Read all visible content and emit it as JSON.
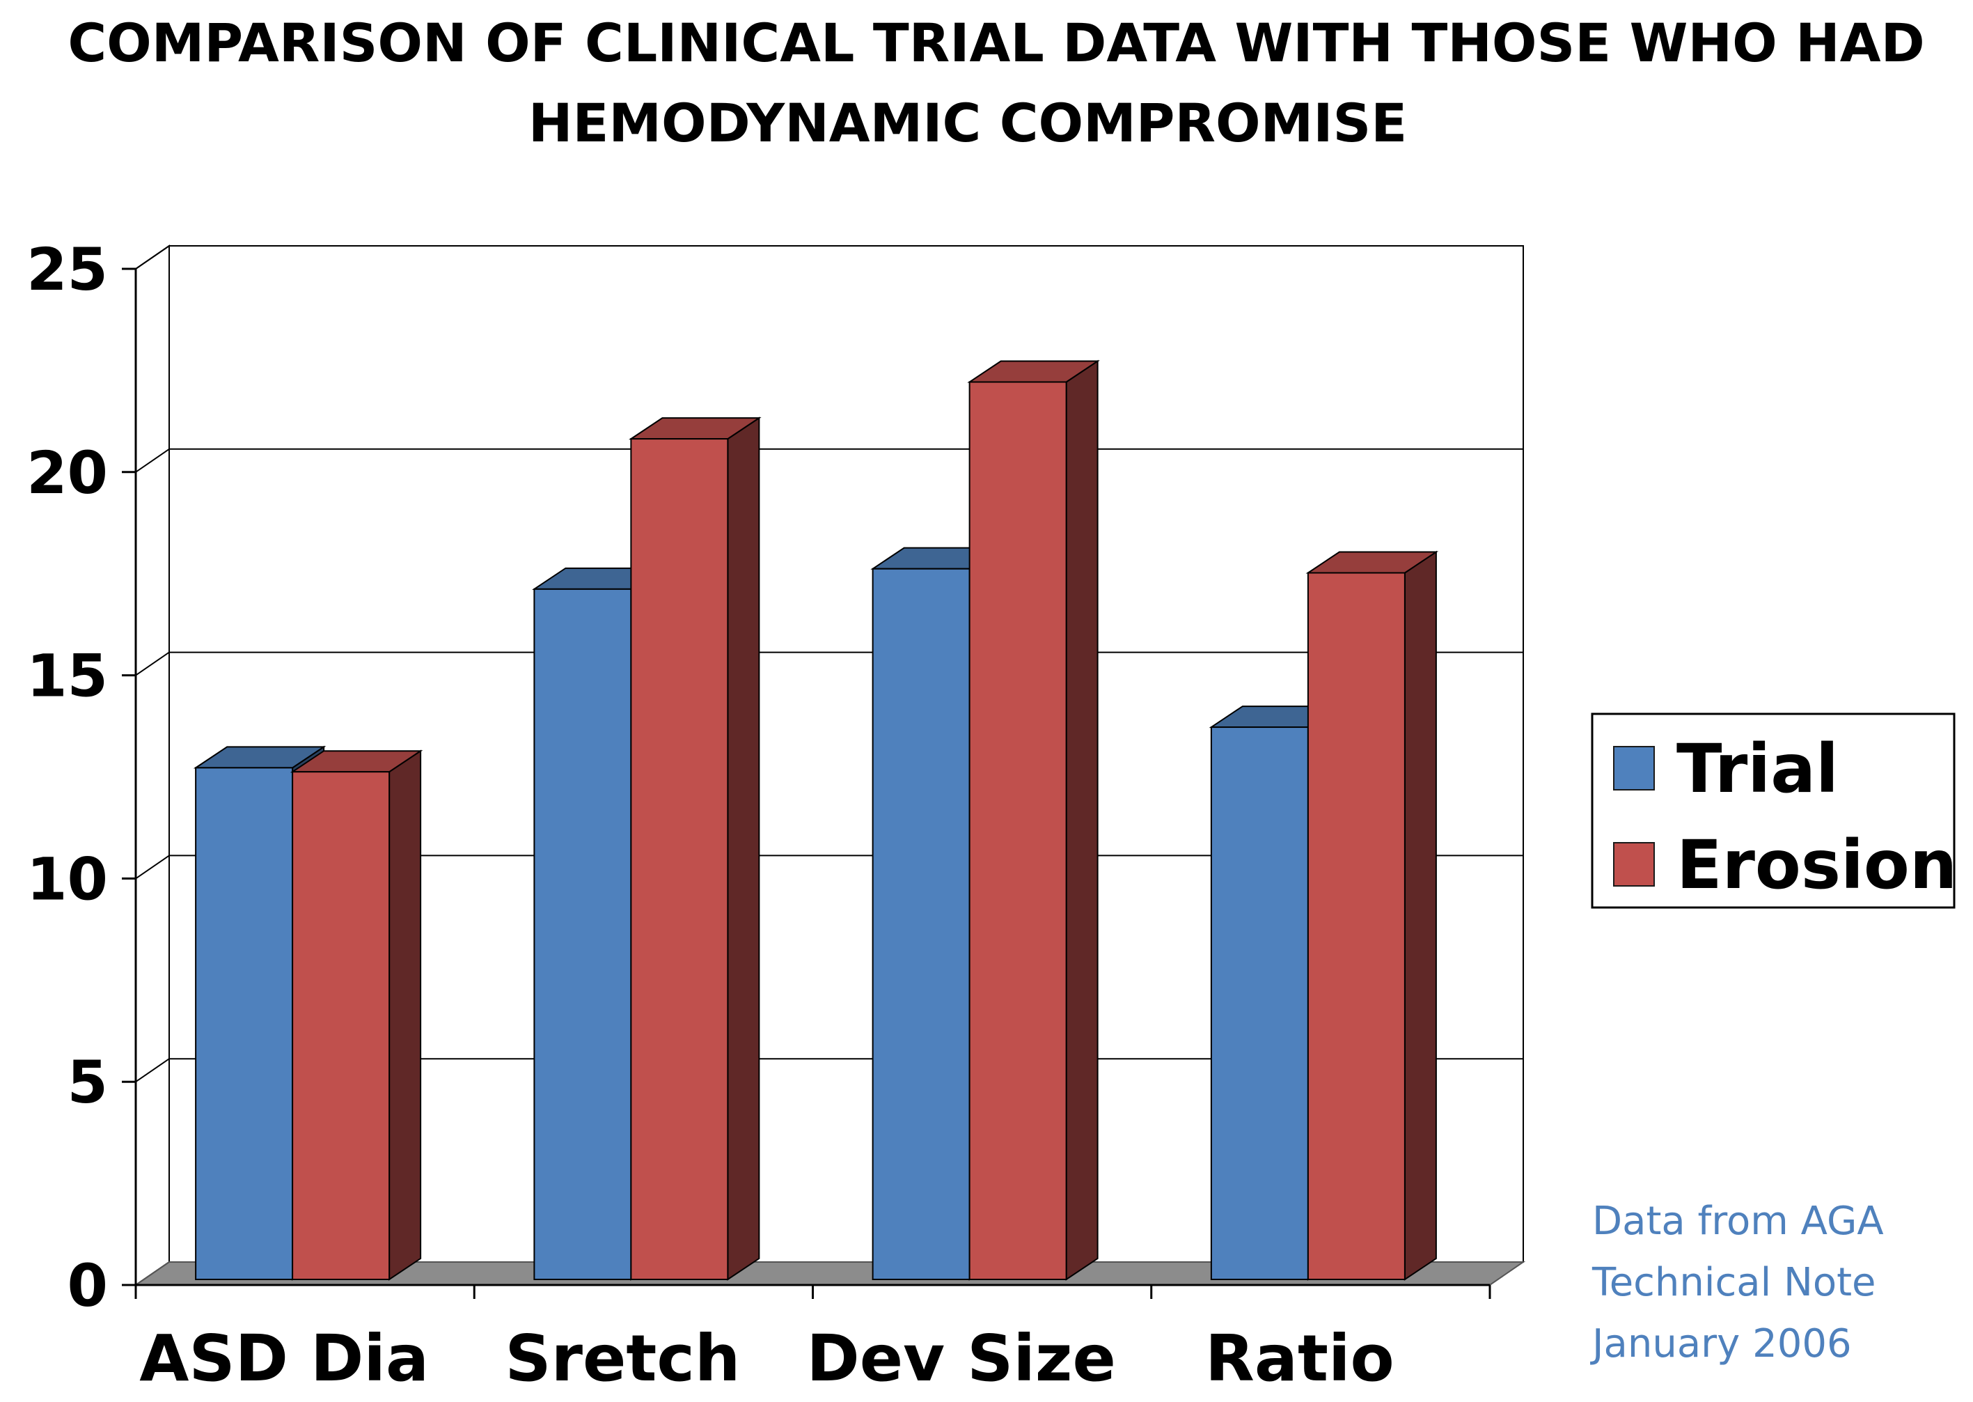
{
  "chart_data": {
    "type": "bar",
    "style": "3d-clustered",
    "title_lines": [
      "COMPARISON OF CLINICAL TRIAL DATA WITH THOSE WHO HAD",
      "HEMODYNAMIC COMPROMISE"
    ],
    "categories": [
      "ASD Dia",
      "Sretch",
      "Dev Size",
      "Ratio"
    ],
    "series": [
      {
        "name": "Trial",
        "values": [
          12.6,
          17.0,
          17.5,
          13.6
        ],
        "color": "#4F81BD"
      },
      {
        "name": "Erosion",
        "values": [
          12.5,
          20.7,
          22.1,
          17.4
        ],
        "color": "#C0504D"
      }
    ],
    "ylim": [
      0,
      25
    ],
    "yticks": [
      "0",
      "5",
      "10",
      "15",
      "20",
      "25"
    ],
    "xlabel": "",
    "ylabel": "",
    "grid": true,
    "legend_position": "right",
    "annotation_lines": [
      "Data from AGA",
      "Technical Note",
      "January 2006"
    ]
  }
}
